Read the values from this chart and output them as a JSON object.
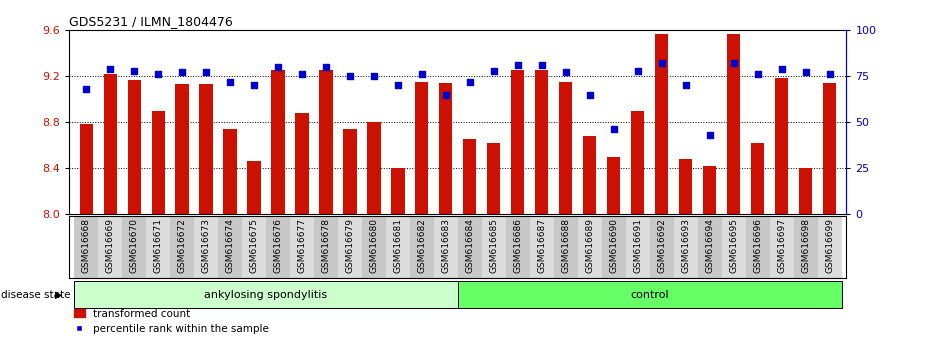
{
  "title": "GDS5231 / ILMN_1804476",
  "samples": [
    "GSM616668",
    "GSM616669",
    "GSM616670",
    "GSM616671",
    "GSM616672",
    "GSM616673",
    "GSM616674",
    "GSM616675",
    "GSM616676",
    "GSM616677",
    "GSM616678",
    "GSM616679",
    "GSM616680",
    "GSM616681",
    "GSM616682",
    "GSM616683",
    "GSM616684",
    "GSM616685",
    "GSM616686",
    "GSM616687",
    "GSM616688",
    "GSM616689",
    "GSM616690",
    "GSM616691",
    "GSM616692",
    "GSM616693",
    "GSM616694",
    "GSM616695",
    "GSM616696",
    "GSM616697",
    "GSM616698",
    "GSM616699"
  ],
  "bar_values": [
    8.78,
    9.22,
    9.17,
    8.9,
    9.13,
    9.13,
    8.74,
    8.46,
    9.25,
    8.88,
    9.25,
    8.74,
    8.8,
    8.4,
    9.15,
    9.14,
    8.65,
    8.62,
    9.25,
    9.25,
    9.15,
    8.68,
    8.5,
    8.9,
    9.57,
    8.48,
    8.42,
    9.57,
    8.62,
    9.18,
    8.4,
    9.14
  ],
  "percentile_values": [
    68,
    79,
    78,
    76,
    77,
    77,
    72,
    70,
    80,
    76,
    80,
    75,
    75,
    70,
    76,
    65,
    72,
    78,
    81,
    81,
    77,
    65,
    46,
    78,
    82,
    70,
    43,
    82,
    76,
    79,
    77,
    76
  ],
  "bar_color": "#CC1100",
  "percentile_color": "#0000CC",
  "ylim_left": [
    8.0,
    9.6
  ],
  "ylim_right": [
    0,
    100
  ],
  "yticks_left": [
    8.0,
    8.4,
    8.8,
    9.2,
    9.6
  ],
  "yticks_right": [
    0,
    25,
    50,
    75,
    100
  ],
  "n_ankylosing": 16,
  "n_control": 16,
  "group_labels": [
    "ankylosing spondylitis",
    "control"
  ],
  "group_color_1": "#CCFFCC",
  "group_color_2": "#66FF66",
  "legend_bar": "transformed count",
  "legend_dot": "percentile rank within the sample",
  "disease_state_label": "disease state",
  "bar_color_r": "#CC1100",
  "bar_width": 0.55,
  "title_fontsize": 9,
  "tick_fontsize": 6.5,
  "axis_label_fontsize": 8
}
